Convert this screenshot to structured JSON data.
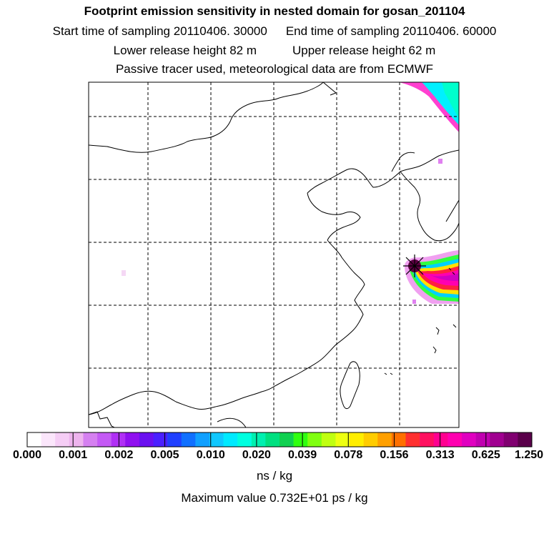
{
  "header": {
    "title": "Footprint emission sensitivity in nested domain for gosan_201104",
    "start_label": "Start time of sampling 20110406. 30000",
    "end_label": "End time of sampling 20110406. 60000",
    "lower_label": "Lower release height   82 m",
    "upper_label": "Upper release height   62 m",
    "note": "Passive tracer used, meteorological data are from ECMWF"
  },
  "colorbar": {
    "colors": [
      "#ffffff",
      "#fbe6fb",
      "#f5cdf5",
      "#eeb4ee",
      "#d580f0",
      "#c45af5",
      "#b030f5",
      "#9010f0",
      "#6a10f0",
      "#4a20ff",
      "#2040ff",
      "#1070ff",
      "#10a0ff",
      "#10c8ff",
      "#00eaff",
      "#00ffe0",
      "#00f0b0",
      "#00e080",
      "#10d050",
      "#30ff10",
      "#80ff10",
      "#c0ff10",
      "#eeff10",
      "#ffee00",
      "#ffcc00",
      "#ffa000",
      "#ff7000",
      "#ff3030",
      "#ff1060",
      "#ff0090",
      "#ff00b0",
      "#e000c0",
      "#c000b0",
      "#a00090",
      "#800070",
      "#5a004a"
    ],
    "tick_labels": [
      "0.000",
      "0.001",
      "0.002",
      "0.005",
      "0.010",
      "0.020",
      "0.039",
      "0.078",
      "0.156",
      "0.313",
      "0.625",
      "1.250"
    ],
    "unit": "ns / kg"
  },
  "footer": {
    "max_value": "Maximum value  0.732E+01 ps / kg"
  }
}
